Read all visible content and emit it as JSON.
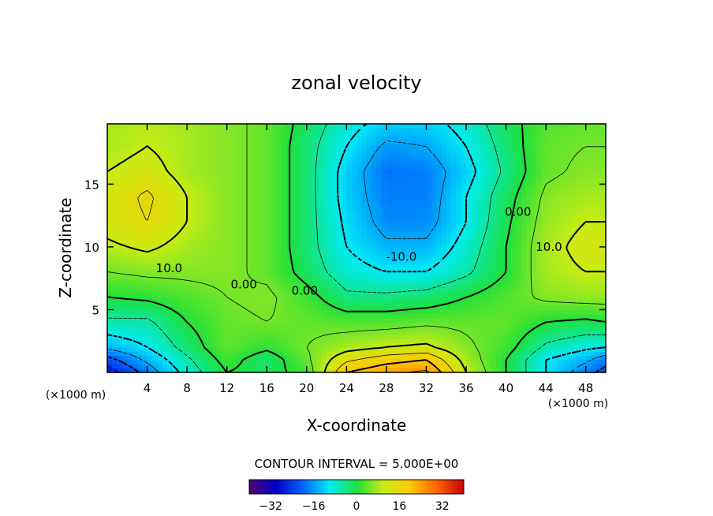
{
  "chart_data": {
    "type": "heatmap",
    "title": "zonal velocity",
    "xlabel": "X-coordinate",
    "ylabel": "Z-coordinate",
    "x_unit": "(×1000 m)",
    "y_unit": "(×1000 m)",
    "xlim": [
      0,
      50
    ],
    "ylim": [
      0,
      19.8
    ],
    "xticks": [
      4,
      8,
      12,
      16,
      20,
      24,
      28,
      32,
      36,
      40,
      44,
      48
    ],
    "yticks": [
      5,
      10,
      15
    ],
    "x": [
      0,
      4,
      8,
      12,
      16,
      20,
      24,
      28,
      32,
      36,
      40,
      44,
      48,
      50
    ],
    "y": [
      0,
      1,
      2,
      4,
      6,
      8,
      10,
      12,
      14,
      16,
      18,
      19.8
    ],
    "z": [
      [
        -28,
        -18,
        -8,
        0,
        -2,
        2,
        20,
        24,
        26,
        10,
        0,
        -10,
        -18,
        -22
      ],
      [
        -22,
        -14,
        -6,
        2,
        -3,
        4,
        14,
        18,
        20,
        8,
        0,
        -10,
        -14,
        -18
      ],
      [
        -14,
        -10,
        -3,
        4,
        1,
        5,
        8,
        10,
        11,
        6,
        2,
        -6,
        -9,
        -10
      ],
      [
        -6,
        -6,
        0,
        4,
        5,
        4,
        3,
        3,
        4,
        4,
        4,
        0,
        -1,
        0
      ],
      [
        0,
        1,
        3,
        5,
        6,
        2,
        -4,
        -4,
        -3,
        0,
        3,
        6,
        7,
        7
      ],
      [
        5,
        6,
        6,
        6,
        4,
        -2,
        -8,
        -10,
        -10,
        -6,
        0,
        8,
        10,
        10
      ],
      [
        9,
        11,
        8,
        6,
        4,
        -3,
        -10,
        -14,
        -14,
        -8,
        0,
        8,
        12,
        12
      ],
      [
        12,
        15,
        10,
        6,
        4,
        -3,
        -11,
        -17,
        -17,
        -10,
        -1,
        7,
        10,
        10
      ],
      [
        12,
        16,
        10,
        6,
        4,
        -3,
        -12,
        -18,
        -18,
        -10,
        -2,
        6,
        8,
        8
      ],
      [
        10,
        12,
        8,
        6,
        4,
        -3,
        -12,
        -19,
        -18,
        -12,
        -4,
        4,
        6,
        6
      ],
      [
        8,
        10,
        8,
        6,
        4,
        -3,
        -10,
        -16,
        -15,
        -10,
        -3,
        4,
        5,
        5
      ],
      [
        8,
        9,
        8,
        6,
        4,
        -2,
        -8,
        -12,
        -12,
        -8,
        -2,
        3,
        4,
        4
      ]
    ],
    "contour_interval_text": "CONTOUR INTERVAL = 5.000E+00",
    "contour_labels": [
      {
        "text": "10.0",
        "x": 6.2,
        "y": 8.3
      },
      {
        "text": "0.00",
        "x": 13.7,
        "y": 7.0
      },
      {
        "text": "0.00",
        "x": 19.8,
        "y": 6.5
      },
      {
        "text": "-10.0",
        "x": 29.5,
        "y": 9.2
      },
      {
        "text": "0.00",
        "x": 41.2,
        "y": 12.8
      },
      {
        "text": "10.0",
        "x": 44.3,
        "y": 10.0
      }
    ],
    "colorbar": {
      "range": [
        -40,
        40
      ],
      "tick_values": [
        -32,
        -16,
        0,
        16,
        32
      ],
      "tick_labels": [
        "−32",
        "−16",
        "0",
        "16",
        "32"
      ]
    }
  }
}
